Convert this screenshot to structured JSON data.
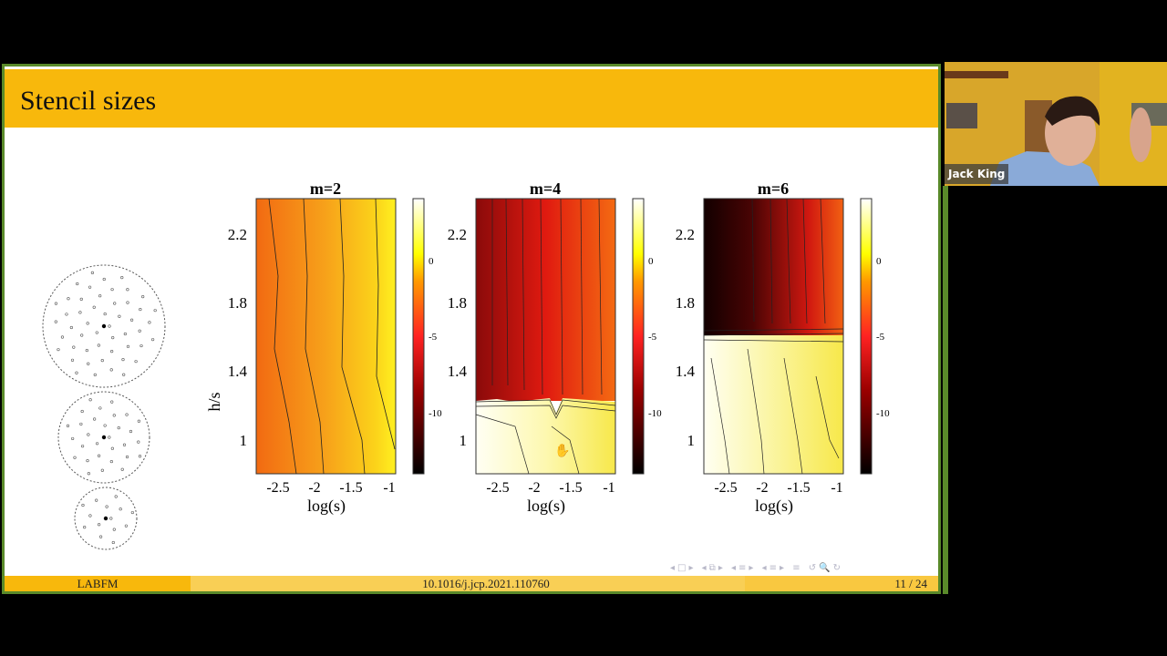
{
  "slide": {
    "title": "Stencil sizes",
    "footer": {
      "left": "LABFM",
      "center": "10.1016/j.jcp.2021.110760",
      "right": "11 / 24"
    },
    "nav_icons": [
      "prev-frame-icon",
      "next-frame-icon",
      "prev-subsection-icon",
      "next-subsection-icon",
      "prev-section-icon",
      "next-section-icon",
      "toc-icon",
      "back-icon",
      "search-icon",
      "forward-icon"
    ]
  },
  "plots": {
    "ylabel": "h/s",
    "xlabel": "log(s)",
    "yticks": [
      "2.2",
      "1.8",
      "1.4",
      "1"
    ],
    "xticks": [
      "-2.5",
      "-2",
      "-1.5",
      "-1"
    ],
    "colorbar_ticks": [
      "0",
      "-5",
      "-10"
    ],
    "panels": [
      {
        "title": "m=2"
      },
      {
        "title": "m=4"
      },
      {
        "title": "m=6"
      }
    ]
  },
  "webcam": {
    "participant_name": "Jack King"
  }
}
